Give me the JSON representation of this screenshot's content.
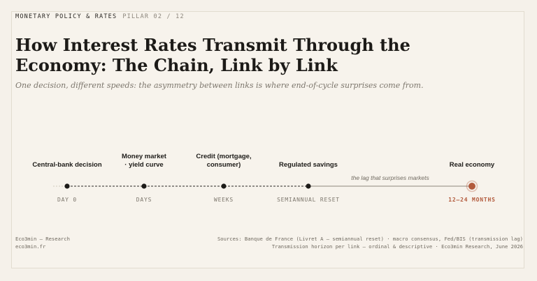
{
  "header": {
    "kicker": "MONETARY POLICY & RATES",
    "pillar": "PILLAR 02 / 12",
    "title": "How Interest Rates Transmit Through the Economy: The Chain, Link by Link",
    "subtitle": "One decision, different speeds: the asymmetry between links is where end-of-cycle surprises come from."
  },
  "diagram": {
    "stages": [
      {
        "label_lines": [
          "Central-bank decision"
        ],
        "horizon": "DAY 0",
        "final": false
      },
      {
        "label_lines": [
          "Money market",
          "· yield curve"
        ],
        "horizon": "DAYS",
        "final": false
      },
      {
        "label_lines": [
          "Credit (mortgage,",
          "consumer)"
        ],
        "horizon": "WEEKS",
        "final": false
      },
      {
        "label_lines": [
          "Regulated savings"
        ],
        "horizon": "SEMIANNUAL RESET",
        "final": false
      },
      {
        "label_lines": [
          "Real economy"
        ],
        "horizon": "12–24 MONTHS",
        "final": true
      }
    ],
    "lag_annotation": "the lag that surprises markets"
  },
  "colors": {
    "ink": "#1d1b18",
    "accent": "#b25a3c",
    "muted": "#7c766c"
  },
  "footer": {
    "brand": "Eco3min — Research",
    "site": "eco3min.fr",
    "sources": "Sources: Banque de France (Livret A — semiannual reset) · macro consensus, Fed/BIS (transmission lag)",
    "note": "Transmission horizon per link — ordinal & descriptive · Eco3min Research, June 2026"
  }
}
